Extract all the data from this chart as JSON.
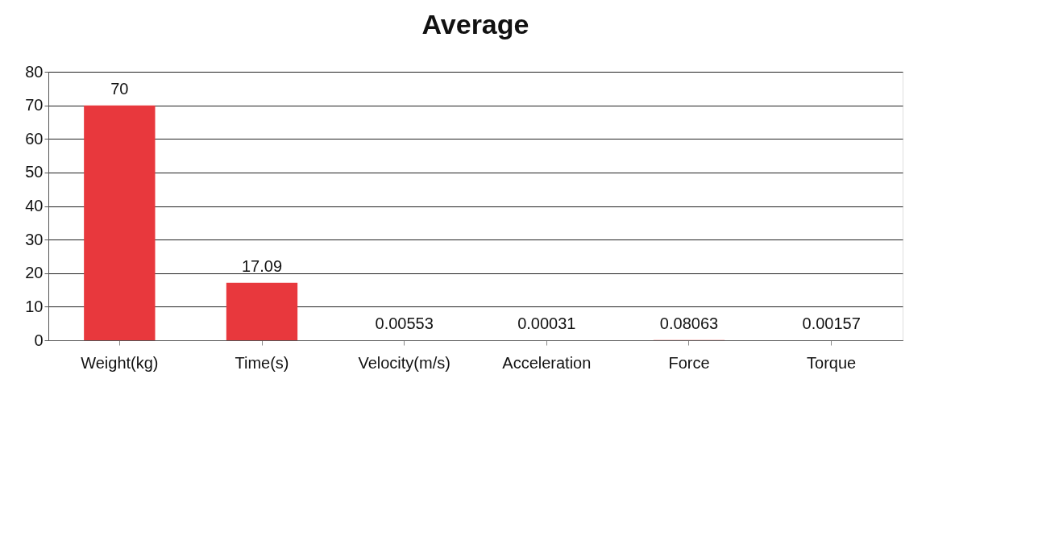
{
  "chart_data": {
    "type": "bar",
    "title": "Average",
    "categories": [
      "Weight(kg)",
      "Time(s)",
      "Velocity(m/s)",
      "Acceleration",
      "Force",
      "Torque"
    ],
    "values": [
      70,
      17.09,
      0.00553,
      0.00031,
      0.08063,
      0.00157
    ],
    "color": "#e8383d",
    "ylim": [
      0,
      80
    ],
    "yticks": [
      0,
      10,
      20,
      30,
      40,
      50,
      60,
      70,
      80
    ],
    "grid": "y",
    "data_labels": true
  }
}
